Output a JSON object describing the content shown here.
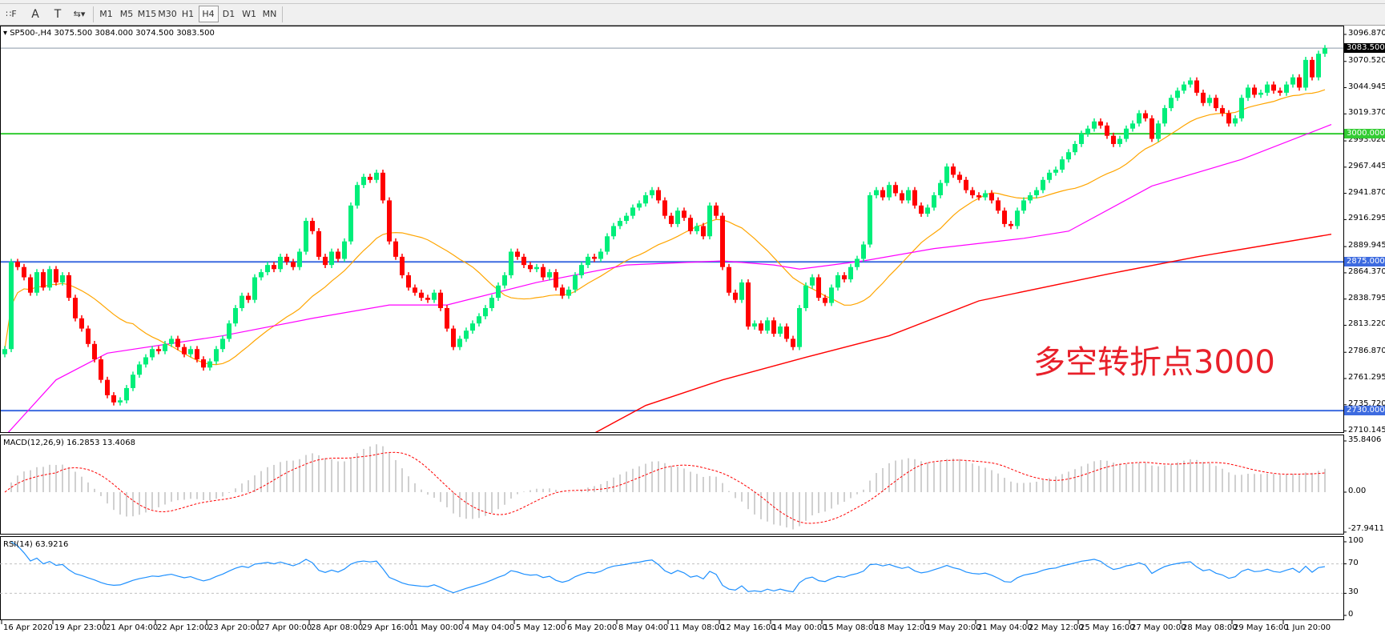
{
  "toolbar": {
    "tools": [
      {
        "name": "fibo-icon",
        "glyph": "∷F"
      },
      {
        "name": "text-icon",
        "glyph": "A"
      },
      {
        "name": "text-label-icon",
        "glyph": "T"
      },
      {
        "name": "arrows-icon",
        "glyph": "⇆▾"
      }
    ],
    "timeframes": [
      "M1",
      "M5",
      "M15",
      "M30",
      "H1",
      "H4",
      "D1",
      "W1",
      "MN"
    ],
    "selected": "H4"
  },
  "chart": {
    "header": "SP500-,H4  3075.500 3084.000 3074.500 3083.500",
    "annotation": "多空转折点3000",
    "price_axis": [
      "3096.870",
      "3070.520",
      "3044.945",
      "3019.370",
      "2993.020",
      "2967.445",
      "2941.870",
      "2916.295",
      "2889.945",
      "2864.370",
      "2838.795",
      "2813.220",
      "2786.870",
      "2761.295",
      "2735.720",
      "2710.145"
    ],
    "price_axis_values": [
      3096.87,
      3070.52,
      3044.945,
      3019.37,
      2993.02,
      2967.445,
      2941.87,
      2916.295,
      2889.945,
      2864.37,
      2838.795,
      2813.22,
      2786.87,
      2761.295,
      2735.72,
      2710.145
    ],
    "current_price": {
      "value": 3083.5,
      "label": "3083.500",
      "color": "#000000"
    },
    "levels": [
      {
        "value": 3000,
        "label": "3000.000",
        "color": "#33cc33"
      },
      {
        "value": 2875,
        "label": "2875.000",
        "color": "#3d6be0"
      },
      {
        "value": 2730,
        "label": "2730.000",
        "color": "#3d6be0"
      }
    ],
    "colors": {
      "bull": "#00ee7a",
      "bear": "#ff0000",
      "ma_fast": "#ffa500",
      "ma_mid": "#ff00ff",
      "ma_slow": "#ff0000"
    }
  },
  "chart_data": {
    "type": "candlestick",
    "symbol": "SP500-",
    "timeframe": "H4",
    "first_open": 2785,
    "closes": [
      2790,
      2875,
      2870,
      2860,
      2845,
      2865,
      2850,
      2868,
      2855,
      2862,
      2840,
      2820,
      2810,
      2795,
      2780,
      2760,
      2745,
      2738,
      2740,
      2752,
      2765,
      2775,
      2782,
      2790,
      2788,
      2795,
      2800,
      2792,
      2785,
      2790,
      2780,
      2772,
      2778,
      2790,
      2800,
      2815,
      2830,
      2842,
      2838,
      2860,
      2865,
      2872,
      2868,
      2880,
      2875,
      2870,
      2885,
      2915,
      2905,
      2880,
      2872,
      2885,
      2878,
      2895,
      2930,
      2950,
      2958,
      2955,
      2962,
      2935,
      2895,
      2880,
      2862,
      2850,
      2845,
      2840,
      2838,
      2845,
      2830,
      2810,
      2792,
      2800,
      2808,
      2815,
      2822,
      2830,
      2840,
      2852,
      2862,
      2885,
      2880,
      2872,
      2868,
      2870,
      2860,
      2865,
      2850,
      2842,
      2848,
      2862,
      2872,
      2880,
      2878,
      2885,
      2900,
      2910,
      2915,
      2920,
      2928,
      2932,
      2940,
      2945,
      2935,
      2920,
      2912,
      2925,
      2918,
      2905,
      2910,
      2900,
      2930,
      2920,
      2870,
      2845,
      2838,
      2855,
      2812,
      2815,
      2808,
      2818,
      2805,
      2812,
      2800,
      2792,
      2830,
      2852,
      2860,
      2840,
      2835,
      2850,
      2862,
      2858,
      2870,
      2878,
      2892,
      2940,
      2945,
      2938,
      2950,
      2942,
      2935,
      2945,
      2930,
      2922,
      2928,
      2940,
      2952,
      2968,
      2960,
      2955,
      2945,
      2940,
      2938,
      2942,
      2935,
      2925,
      2912,
      2910,
      2925,
      2935,
      2940,
      2945,
      2955,
      2962,
      2965,
      2975,
      2982,
      2990,
      3000,
      3005,
      3012,
      3008,
      2998,
      2990,
      2995,
      3005,
      3010,
      3020,
      3015,
      2995,
      3010,
      3025,
      3035,
      3042,
      3048,
      3052,
      3040,
      3030,
      3035,
      3025,
      3020,
      3010,
      3015,
      3035,
      3045,
      3038,
      3040,
      3048,
      3042,
      3040,
      3048,
      3055,
      3045,
      3072,
      3055,
      3078,
      3083.5
    ],
    "ma_mid_points": [
      [
        0,
        2705
      ],
      [
        8,
        2760
      ],
      [
        16,
        2786
      ],
      [
        34,
        2803
      ],
      [
        48,
        2820
      ],
      [
        60,
        2833
      ],
      [
        69,
        2833
      ],
      [
        83,
        2855
      ],
      [
        97,
        2872
      ],
      [
        112,
        2876
      ],
      [
        120,
        2872
      ],
      [
        124,
        2868
      ],
      [
        134,
        2876
      ],
      [
        145,
        2888
      ],
      [
        159,
        2898
      ],
      [
        166,
        2905
      ],
      [
        179,
        2949
      ],
      [
        193,
        2975
      ],
      [
        207,
        3009
      ]
    ],
    "ma_slow_points": [
      [
        92,
        2708
      ],
      [
        100,
        2735
      ],
      [
        112,
        2760
      ],
      [
        125,
        2782
      ],
      [
        138,
        2803
      ],
      [
        152,
        2837
      ],
      [
        172,
        2863
      ],
      [
        186,
        2880
      ],
      [
        207,
        2902
      ]
    ],
    "ylim": [
      2710.145,
      3096.87
    ]
  },
  "macd": {
    "header": "MACD(12,26,9) 16.2853 13.4068",
    "axis": [
      "35.8406",
      "0.00",
      "-27.9411"
    ],
    "range": [
      -27.9411,
      35.8406
    ]
  },
  "rsi": {
    "header": "RSI(14) 63.9216",
    "axis": [
      "100",
      "70",
      "30",
      "0"
    ],
    "levels": [
      70,
      30
    ]
  },
  "time_axis": [
    "16 Apr 2020",
    "19 Apr 23:00",
    "21 Apr 04:00",
    "22 Apr 12:00",
    "23 Apr 20:00",
    "27 Apr 00:00",
    "28 Apr 08:00",
    "29 Apr 16:00",
    "1 May 00:00",
    "4 May 04:00",
    "5 May 12:00",
    "6 May 20:00",
    "8 May 04:00",
    "11 May 08:00",
    "12 May 16:00",
    "14 May 00:00",
    "15 May 08:00",
    "18 May 12:00",
    "19 May 20:00",
    "21 May 04:00",
    "22 May 12:00",
    "25 May 16:00",
    "27 May 00:00",
    "28 May 08:00",
    "29 May 16:00",
    "1 Jun 20:00"
  ]
}
